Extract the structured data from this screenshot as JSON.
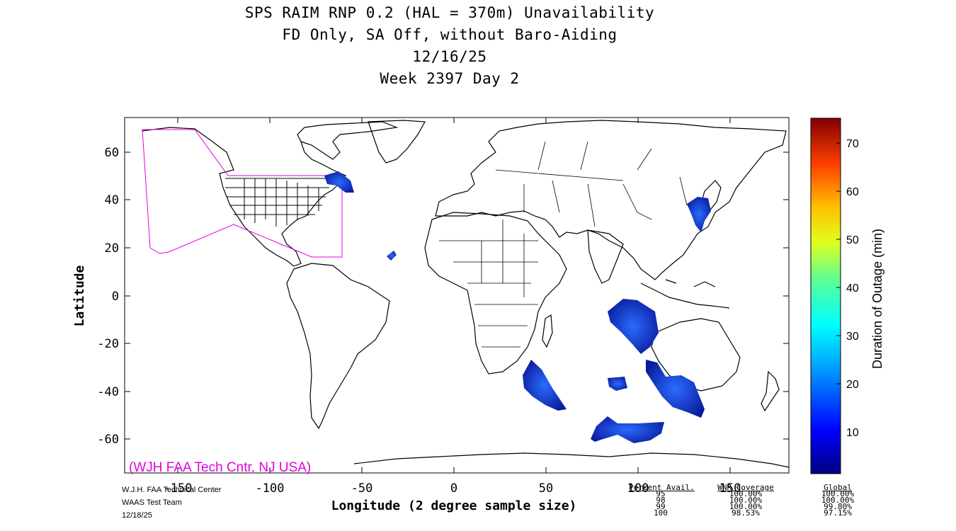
{
  "title": {
    "line1": "SPS RAIM RNP 0.2 (HAL = 370m) Unavailability",
    "line2": "FD Only, SA Off, without Baro-Aiding",
    "line3": "12/16/25",
    "line4": "Week 2397 Day 2"
  },
  "axes": {
    "xlabel": "Longitude (2 degree sample size)",
    "ylabel": "Latitude",
    "xticks": [
      "-150",
      "-100",
      "-50",
      "0",
      "50",
      "100",
      "150"
    ],
    "yticks": [
      "60",
      "40",
      "20",
      "0",
      "-20",
      "-40",
      "-60"
    ]
  },
  "colorbar": {
    "label": "Duration of Outage (min)",
    "ticks": [
      "70",
      "60",
      "50",
      "40",
      "30",
      "20",
      "10"
    ]
  },
  "watermark": "(WJH FAA Tech Cntr, NJ USA)",
  "credits": {
    "line1": "W.J.H. FAA Technical Center",
    "line2": "WAAS Test Team",
    "line3": "12/18/25"
  },
  "avail_table": {
    "headers": [
      "Percent Avail.",
      "WNR Coverage",
      "Global"
    ],
    "rows": [
      [
        "95",
        "100.00%",
        "100.00%"
      ],
      [
        "98",
        "100.00%",
        "100.00%"
      ],
      [
        "99",
        "100.00%",
        "99.80%"
      ],
      [
        "100",
        "98.53%",
        "97.15%"
      ]
    ]
  },
  "colors": {
    "outage_blue": "#1030c8",
    "outage_dark": "#0a1a9c",
    "region_outline": "#e000e0",
    "coastline": "#000000"
  }
}
